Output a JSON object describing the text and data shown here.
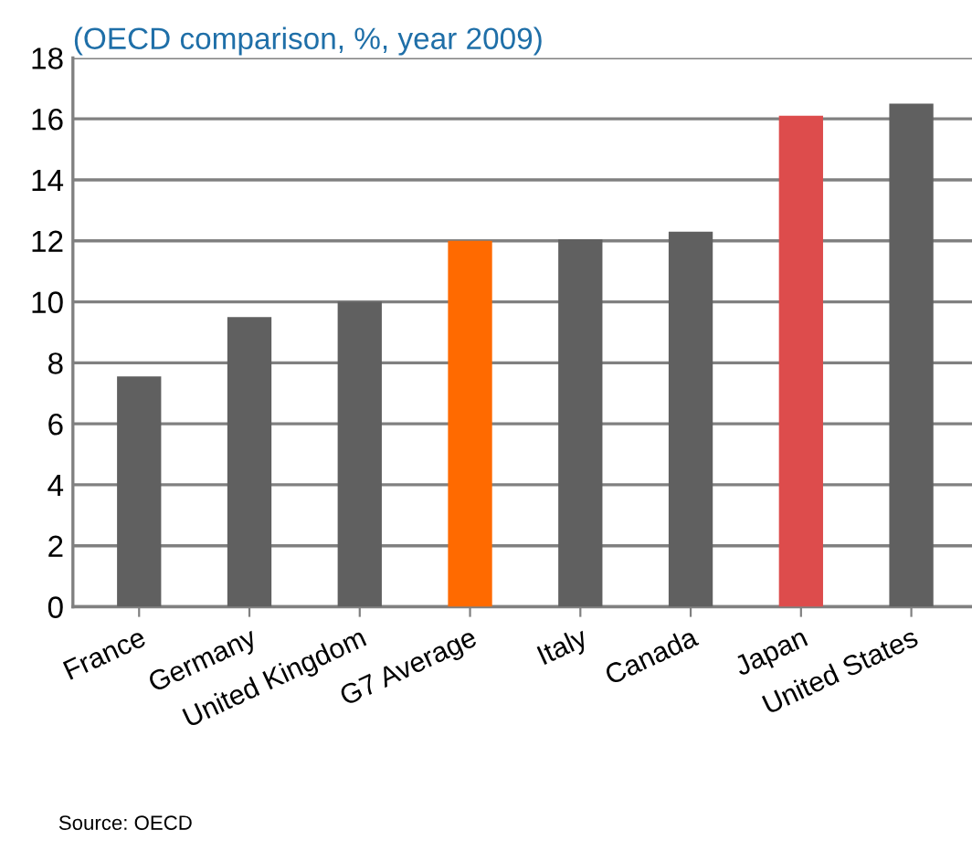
{
  "chart_data": {
    "type": "bar",
    "subtitle": "(OECD comparison, %, year 2009)",
    "categories": [
      "France",
      "Germany",
      "United Kingdom",
      "G7 Average",
      "Italy",
      "Canada",
      "Japan",
      "United States"
    ],
    "values": [
      7.55,
      9.5,
      10.0,
      12.0,
      12.05,
      12.3,
      16.1,
      16.5
    ],
    "colors": [
      "#606060",
      "#606060",
      "#606060",
      "#ff6a00",
      "#606060",
      "#606060",
      "#dd4c4c",
      "#606060"
    ],
    "ylim": [
      0,
      18
    ],
    "yticks": [
      0,
      2,
      4,
      6,
      8,
      10,
      12,
      14,
      16,
      18
    ],
    "grid": "y",
    "annotations": [
      "Source: OECD"
    ]
  }
}
